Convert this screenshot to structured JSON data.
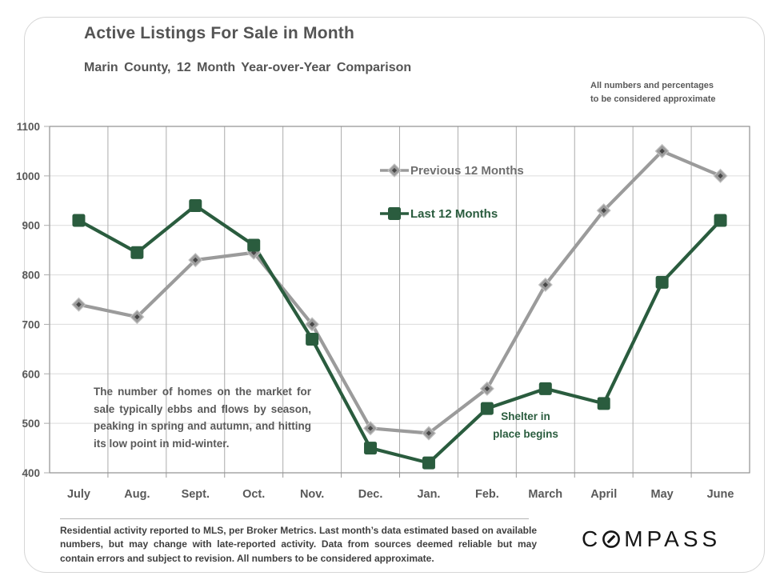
{
  "header": {
    "title": "Active Listings For Sale in Month",
    "subtitle": "Marin County, 12 Month Year-over-Year Comparison",
    "note_line1": "All numbers and percentages",
    "note_line2": "to be considered approximate"
  },
  "chart_data": {
    "type": "line",
    "title": "Active Listings For Sale in Month",
    "subtitle": "Marin County, 12 Month Year-over-Year Comparison",
    "categories": [
      "July",
      "Aug.",
      "Sept.",
      "Oct.",
      "Nov.",
      "Dec.",
      "Jan.",
      "Feb.",
      "March",
      "April",
      "May",
      "June"
    ],
    "series": [
      {
        "name": "Previous 12 Months",
        "marker": "diamond",
        "color": "#9b9b9b",
        "values": [
          740,
          715,
          830,
          845,
          700,
          490,
          480,
          570,
          780,
          930,
          1050,
          1000
        ]
      },
      {
        "name": "Last 12 Months",
        "marker": "square",
        "color": "#2a5c3e",
        "values": [
          910,
          845,
          940,
          860,
          670,
          450,
          420,
          530,
          570,
          540,
          785,
          910
        ]
      }
    ],
    "ylim": [
      400,
      1100
    ],
    "ytick_step": 100,
    "y_axis_ticks": [
      400,
      500,
      600,
      700,
      800,
      900,
      1000,
      1100
    ],
    "grid": true,
    "legend_position": "upper-middle",
    "annotations": [
      {
        "text": "The number of homes on the market for sale typically ebbs and flows by season, peaking in spring and autumn, and hitting its low point in mid-winter."
      },
      {
        "text": "Shelter in place begins",
        "lines": [
          "Shelter in",
          "place begins"
        ]
      }
    ]
  },
  "footer": {
    "text": "Residential activity reported to MLS, per Broker Metrics. Last month’s data estimated based on available numbers, but may change with late-reported activity. Data from sources deemed reliable but may contain errors and subject to revision. All numbers to be considered approximate.",
    "logo": {
      "first_letter": "C",
      "rest": "MPASS"
    }
  }
}
